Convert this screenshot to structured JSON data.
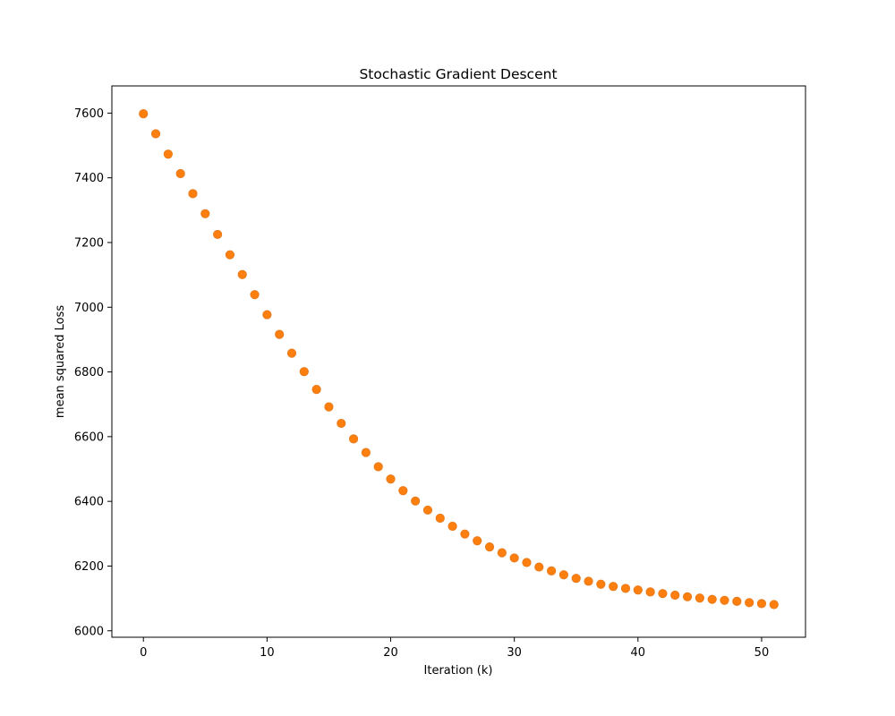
{
  "chart_data": {
    "type": "scatter",
    "title": "Stochastic Gradient Descent",
    "xlabel": "Iteration (k)",
    "ylabel": "mean squared Loss",
    "xlim": [
      -2.55,
      53.55
    ],
    "ylim": [
      5980,
      7684
    ],
    "xticks": [
      0,
      10,
      20,
      30,
      40,
      50
    ],
    "yticks": [
      6000,
      6200,
      6400,
      6600,
      6800,
      7000,
      7200,
      7400,
      7600
    ],
    "grid": false,
    "legend": "none",
    "marker_color": "#ff7f0e",
    "marker_edge_color": "#e87b1c",
    "series": [
      {
        "x": [
          0,
          1,
          2,
          3,
          4,
          5,
          6,
          7,
          8,
          9,
          10,
          11,
          12,
          13,
          14,
          15,
          16,
          17,
          18,
          19,
          20,
          21,
          22,
          23,
          24,
          25,
          26,
          27,
          28,
          29,
          30,
          31,
          32,
          33,
          34,
          35,
          36,
          37,
          38,
          39,
          40,
          41,
          42,
          43,
          44,
          45,
          46,
          47,
          48,
          49,
          50,
          51
        ],
        "y": [
          7598,
          7536,
          7473,
          7413,
          7351,
          7289,
          7225,
          7162,
          7101,
          7039,
          6977,
          6916,
          6858,
          6801,
          6746,
          6692,
          6641,
          6593,
          6551,
          6507,
          6469,
          6433,
          6401,
          6373,
          6348,
          6323,
          6299,
          6278,
          6259,
          6241,
          6225,
          6211,
          6197,
          6185,
          6173,
          6162,
          6153,
          6144,
          6137,
          6131,
          6126,
          6120,
          6115,
          6110,
          6105,
          6101,
          6097,
          6094,
          6091,
          6087,
          6084,
          6081
        ]
      }
    ]
  }
}
